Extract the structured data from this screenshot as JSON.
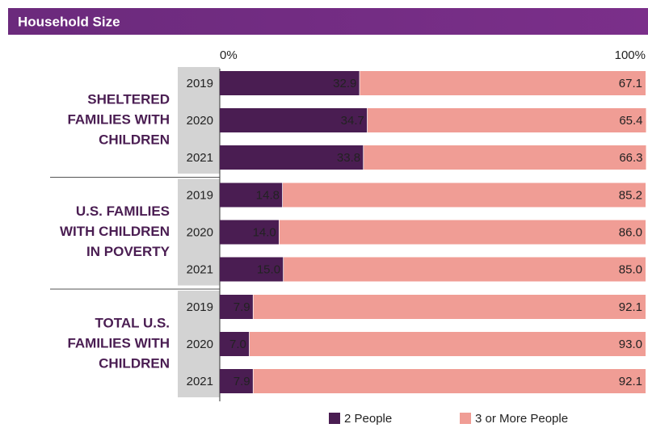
{
  "chart_data": {
    "type": "stacked-bar",
    "orientation": "horizontal",
    "title": "Household Size",
    "categories": [
      "2019",
      "2020",
      "2021",
      "2019",
      "2020",
      "2021",
      "2019",
      "2020",
      "2021"
    ],
    "group_labels": [
      [
        "SHELTERED",
        "FAMILIES WITH",
        "CHILDREN"
      ],
      [
        "U.S. FAMILIES",
        "WITH CHILDREN",
        "IN POVERTY"
      ],
      [
        "TOTAL U.S.",
        "FAMILIES WITH",
        "CHILDREN"
      ]
    ],
    "series": [
      {
        "name": "2 People",
        "color": "#4a1d52",
        "values": [
          32.9,
          34.7,
          33.8,
          14.8,
          14.0,
          15.0,
          7.9,
          7.0,
          7.9
        ],
        "value_labels": [
          "32.9",
          "34.7",
          "33.8",
          "14.8",
          "14.0",
          "15.0",
          "7.9",
          "7.0",
          "7.9"
        ]
      },
      {
        "name": "3 or More People",
        "color": "#f09d95",
        "values": [
          67.1,
          65.4,
          66.3,
          85.2,
          86.0,
          85.0,
          92.1,
          93.0,
          92.1
        ],
        "value_labels": [
          "67.1",
          "65.4",
          "66.3",
          "85.2",
          "86.0",
          "85.0",
          "92.1",
          "93.0",
          "92.1"
        ]
      }
    ],
    "xlim": [
      0,
      100
    ],
    "xticks": [
      {
        "value": 0,
        "label": "0%"
      },
      {
        "value": 100,
        "label": "100%"
      }
    ]
  }
}
